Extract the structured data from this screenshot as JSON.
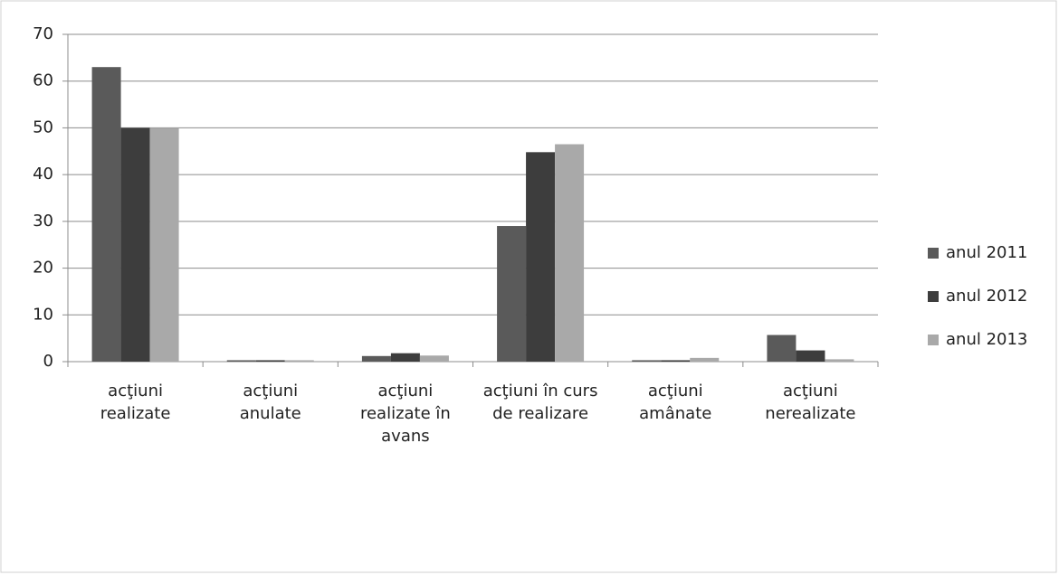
{
  "chart_data": {
    "type": "bar",
    "categories": [
      "acţiuni realizate",
      "acţiuni anulate",
      "acţiuni realizate în avans",
      "acţiuni în curs de realizare",
      "acţiuni amânate",
      "acţiuni nerealizate"
    ],
    "series": [
      {
        "name": "anul 2011",
        "color": "#5a5a5a",
        "values": [
          63,
          0.3,
          1.2,
          29,
          0.3,
          5.7
        ]
      },
      {
        "name": "anul 2012",
        "color": "#3d3d3d",
        "values": [
          50,
          0.3,
          1.8,
          44.8,
          0.3,
          2.4
        ]
      },
      {
        "name": "anul 2013",
        "color": "#a9a9a9",
        "values": [
          50,
          0.3,
          1.3,
          46.5,
          0.8,
          0.5
        ]
      }
    ],
    "ylim": [
      0,
      70
    ],
    "yticks": [
      0,
      10,
      20,
      30,
      40,
      50,
      60,
      70
    ],
    "grid": true,
    "legend": "right"
  }
}
